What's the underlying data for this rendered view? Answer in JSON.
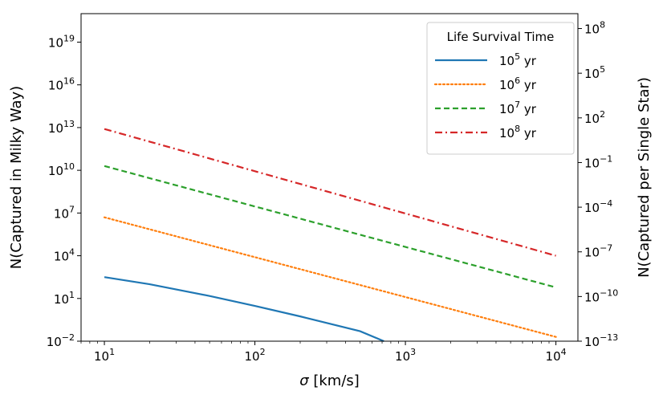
{
  "chart_data": {
    "type": "line",
    "xscale": "log",
    "xlabel": "σ [km/s]",
    "ylabel": "N(Captured in Milky Way)",
    "ylabel_right": "N(Captured per Single Star)",
    "xlim": [
      7,
      14000
    ],
    "ylim": [
      0.01,
      1e+21
    ],
    "ylim_right": [
      1e-13,
      1000000000.0
    ],
    "x_ticks": [
      {
        "value": 10,
        "base": "10",
        "exp": "1"
      },
      {
        "value": 100,
        "base": "10",
        "exp": "2"
      },
      {
        "value": 1000,
        "base": "10",
        "exp": "3"
      },
      {
        "value": 10000,
        "base": "10",
        "exp": "4"
      }
    ],
    "y_ticks": [
      {
        "value": 0.01,
        "base": "10",
        "exp": "−2"
      },
      {
        "value": 10,
        "base": "10",
        "exp": "1"
      },
      {
        "value": 10000,
        "base": "10",
        "exp": "4"
      },
      {
        "value": 10000000.0,
        "base": "10",
        "exp": "7"
      },
      {
        "value": 10000000000.0,
        "base": "10",
        "exp": "10"
      },
      {
        "value": 10000000000000.0,
        "base": "10",
        "exp": "13"
      },
      {
        "value": 1e+16,
        "base": "10",
        "exp": "16"
      },
      {
        "value": 1e+19,
        "base": "10",
        "exp": "19"
      }
    ],
    "y_ticks_right": [
      {
        "value": 1e-13,
        "base": "10",
        "exp": "−13"
      },
      {
        "value": 1e-10,
        "base": "10",
        "exp": "−10"
      },
      {
        "value": 1e-07,
        "base": "10",
        "exp": "−7"
      },
      {
        "value": 0.0001,
        "base": "10",
        "exp": "−4"
      },
      {
        "value": 0.1,
        "base": "10",
        "exp": "−1"
      },
      {
        "value": 100,
        "base": "10",
        "exp": "2"
      },
      {
        "value": 100000,
        "base": "10",
        "exp": "5"
      },
      {
        "value": 100000000.0,
        "base": "10",
        "exp": "8"
      }
    ],
    "legend": {
      "title": "Life Survival Time",
      "location": "top-right"
    },
    "series": [
      {
        "name_base": "10",
        "name_exp": "5",
        "name_unit": " yr",
        "color": "#1f77b4",
        "style": "solid",
        "x": [
          10,
          20,
          50,
          100,
          200,
          500,
          720
        ],
        "y": [
          316,
          100,
          15,
          3,
          0.55,
          0.05,
          0.01
        ]
      },
      {
        "name_base": "10",
        "name_exp": "6",
        "name_unit": " yr",
        "color": "#ff7f0e",
        "style": "dotted",
        "x": [
          10,
          10000
        ],
        "y": [
          5000000,
          0.02
        ]
      },
      {
        "name_base": "10",
        "name_exp": "7",
        "name_unit": " yr",
        "color": "#2ca02c",
        "style": "dashed",
        "x": [
          10,
          10000
        ],
        "y": [
          20000000000,
          60
        ]
      },
      {
        "name_base": "10",
        "name_exp": "8",
        "name_unit": " yr",
        "color": "#d62728",
        "style": "dashdot",
        "x": [
          10,
          10000
        ],
        "y": [
          8000000000000,
          10000
        ]
      }
    ]
  }
}
